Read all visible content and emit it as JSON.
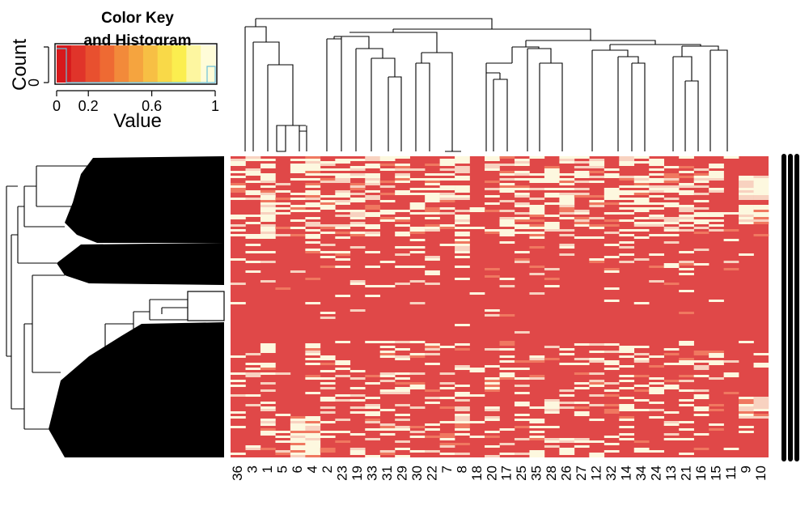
{
  "chart_data": [
    {
      "type": "heatmap",
      "columns": [
        "36",
        "3",
        "1",
        "5",
        "6",
        "4",
        "2",
        "23",
        "19",
        "33",
        "31",
        "29",
        "30",
        "22",
        "7",
        "8",
        "18",
        "20",
        "17",
        "25",
        "35",
        "28",
        "26",
        "27",
        "12",
        "32",
        "14",
        "34",
        "24",
        "13",
        "21",
        "16",
        "15",
        "11",
        "9",
        "10"
      ],
      "value_range": [
        0,
        1
      ],
      "colors": {
        "low": "#e04848",
        "mid": "#f07860",
        "high": "#fdf8df"
      },
      "column_dendrogram": true,
      "row_dendrogram": true,
      "row_labels_unreadable": true
    },
    {
      "type": "histogram",
      "role": "color-key",
      "title_line1": "Color Key",
      "title_line2": "and Histogram",
      "xlabel": "Value",
      "ylabel": "Count",
      "ytick": "0",
      "xticks": [
        "0",
        "0.2",
        "0.6",
        "1"
      ],
      "xlim": [
        0,
        1
      ],
      "palette": [
        "#d7191c",
        "#e0342a",
        "#e8502f",
        "#ee6a33",
        "#f28a3a",
        "#f5a43f",
        "#f7bf44",
        "#f9d948",
        "#fbee4f",
        "#fdf6a0",
        "#fffcd8"
      ]
    }
  ]
}
